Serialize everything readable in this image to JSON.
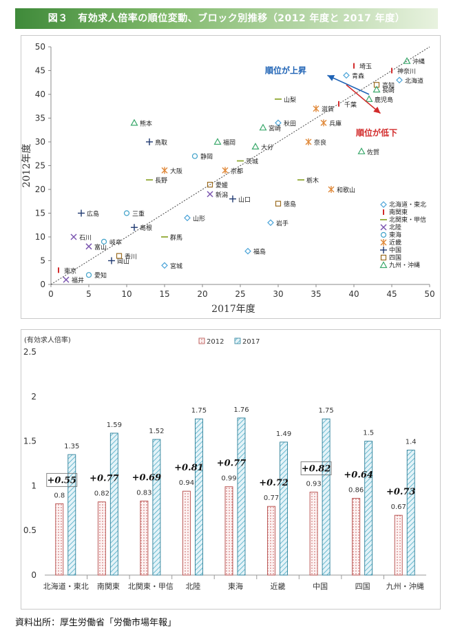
{
  "page": {
    "title": "図３　有効求人倍率の順位変動、ブロック別推移（2012 年度と 2017 年度）",
    "source": "資料出所：厚生労働省「労働市場年報」"
  },
  "chart_data": [
    {
      "type": "scatter",
      "xlabel": "2017年度",
      "ylabel": "2012年度",
      "xlim": [
        0,
        50
      ],
      "ylim": [
        0,
        50
      ],
      "xticks": [
        0,
        5,
        10,
        15,
        20,
        25,
        30,
        35,
        40,
        45,
        50
      ],
      "yticks": [
        0,
        5,
        10,
        15,
        20,
        25,
        30,
        35,
        40,
        45,
        50
      ],
      "grid": false,
      "diagonal": true,
      "legend_position": "right",
      "annotations": [
        {
          "text": "順位が上昇",
          "color": "#1f63b5"
        },
        {
          "text": "順位が低下",
          "color": "#d22b2b"
        }
      ],
      "series": [
        {
          "name": "北海道・東北",
          "marker": "diamond",
          "color": "#4aa3d8",
          "points": [
            {
              "label": "北海道",
              "x": 46,
              "y": 43
            },
            {
              "label": "青森",
              "x": 39,
              "y": 44
            },
            {
              "label": "秋田",
              "x": 30,
              "y": 34
            },
            {
              "label": "山形",
              "x": 18,
              "y": 14
            },
            {
              "label": "岩手",
              "x": 29,
              "y": 13
            },
            {
              "label": "福島",
              "x": 26,
              "y": 7
            },
            {
              "label": "宮城",
              "x": 15,
              "y": 4
            }
          ]
        },
        {
          "name": "南関東",
          "marker": "dash",
          "color": "#d22b2b",
          "points": [
            {
              "label": "埼玉",
              "x": 40,
              "y": 46
            },
            {
              "label": "神奈川",
              "x": 45,
              "y": 45
            },
            {
              "label": "千葉",
              "x": 38,
              "y": 38
            },
            {
              "label": "東京",
              "x": 1,
              "y": 3
            }
          ]
        },
        {
          "name": "北関東・甲信",
          "marker": "hline",
          "color": "#8fa832",
          "points": [
            {
              "label": "山梨",
              "x": 30,
              "y": 39
            },
            {
              "label": "茨城",
              "x": 25,
              "y": 26
            },
            {
              "label": "長野",
              "x": 13,
              "y": 22
            },
            {
              "label": "栃木",
              "x": 33,
              "y": 22
            },
            {
              "label": "群馬",
              "x": 15,
              "y": 10
            }
          ]
        },
        {
          "name": "北陸",
          "marker": "x",
          "color": "#7b56b0",
          "points": [
            {
              "label": "新潟",
              "x": 21,
              "y": 19
            },
            {
              "label": "石川",
              "x": 3,
              "y": 10
            },
            {
              "label": "富山",
              "x": 5,
              "y": 8
            },
            {
              "label": "福井",
              "x": 2,
              "y": 1
            }
          ]
        },
        {
          "name": "東海",
          "marker": "circle",
          "color": "#3da0c8",
          "points": [
            {
              "label": "静岡",
              "x": 19,
              "y": 27
            },
            {
              "label": "三重",
              "x": 10,
              "y": 15
            },
            {
              "label": "岐阜",
              "x": 7,
              "y": 9
            },
            {
              "label": "愛知",
              "x": 5,
              "y": 2
            }
          ]
        },
        {
          "name": "近畿",
          "marker": "asterisk",
          "color": "#e0893a",
          "points": [
            {
              "label": "滋賀",
              "x": 35,
              "y": 37
            },
            {
              "label": "兵庫",
              "x": 36,
              "y": 34
            },
            {
              "label": "奈良",
              "x": 34,
              "y": 30
            },
            {
              "label": "京都",
              "x": 23,
              "y": 24
            },
            {
              "label": "大阪",
              "x": 15,
              "y": 24
            },
            {
              "label": "和歌山",
              "x": 37,
              "y": 20
            }
          ]
        },
        {
          "name": "中国",
          "marker": "plus",
          "color": "#1e3870",
          "points": [
            {
              "label": "鳥取",
              "x": 13,
              "y": 30
            },
            {
              "label": "山口",
              "x": 24,
              "y": 18
            },
            {
              "label": "広島",
              "x": 4,
              "y": 15
            },
            {
              "label": "島根",
              "x": 11,
              "y": 12
            },
            {
              "label": "岡山",
              "x": 8,
              "y": 5
            }
          ]
        },
        {
          "name": "四国",
          "marker": "square",
          "color": "#9a6a1e",
          "points": [
            {
              "label": "高知",
              "x": 43,
              "y": 42
            },
            {
              "label": "愛媛",
              "x": 21,
              "y": 21
            },
            {
              "label": "徳島",
              "x": 30,
              "y": 17
            },
            {
              "label": "香川",
              "x": 9,
              "y": 6
            }
          ]
        },
        {
          "name": "九州・沖縄",
          "marker": "triangle",
          "color": "#3aa86b",
          "points": [
            {
              "label": "沖縄",
              "x": 47,
              "y": 47
            },
            {
              "label": "長崎",
              "x": 43,
              "y": 41
            },
            {
              "label": "鹿児島",
              "x": 42,
              "y": 39
            },
            {
              "label": "宮崎",
              "x": 28,
              "y": 33
            },
            {
              "label": "熊本",
              "x": 11,
              "y": 34
            },
            {
              "label": "福岡",
              "x": 22,
              "y": 30
            },
            {
              "label": "大分",
              "x": 27,
              "y": 29
            },
            {
              "label": "佐賀",
              "x": 41,
              "y": 28
            }
          ]
        }
      ]
    },
    {
      "type": "bar",
      "ylabel": "(有効求人倍率)",
      "ylim": [
        0,
        2.5
      ],
      "yticks": [
        0,
        0.5,
        1,
        1.5,
        2,
        2.5
      ],
      "yticklabels": [
        "0",
        "0.5",
        "1",
        "1.5",
        "2",
        "2.5"
      ],
      "legend_position": "top",
      "categories": [
        "北海道・東北",
        "南関東",
        "北関東・甲信",
        "北陸",
        "東海",
        "近畿",
        "中国",
        "四国",
        "九州・沖縄"
      ],
      "series": [
        {
          "name": "2012",
          "values": [
            0.8,
            0.82,
            0.83,
            0.94,
            0.99,
            0.77,
            0.93,
            0.86,
            0.67
          ],
          "labels": [
            "0.8",
            "0.82",
            "0.83",
            "0.94",
            "0.99",
            "0.77",
            "0.93",
            "0.86",
            "0.67"
          ],
          "color": "#c0504d",
          "pattern": "dots"
        },
        {
          "name": "2017",
          "values": [
            1.35,
            1.59,
            1.52,
            1.75,
            1.76,
            1.49,
            1.75,
            1.5,
            1.4
          ],
          "labels": [
            "1.35",
            "1.59",
            "1.52",
            "1.75",
            "1.76",
            "1.49",
            "1.75",
            "1.5",
            "1.4"
          ],
          "color": "#4bacc6",
          "pattern": "diagonal"
        }
      ],
      "differences": [
        "+0.55",
        "+0.77",
        "+0.69",
        "+0.81",
        "+0.77",
        "+0.72",
        "+0.82",
        "+0.64",
        "+0.73"
      ],
      "boxed_differences": [
        0,
        6
      ]
    }
  ]
}
